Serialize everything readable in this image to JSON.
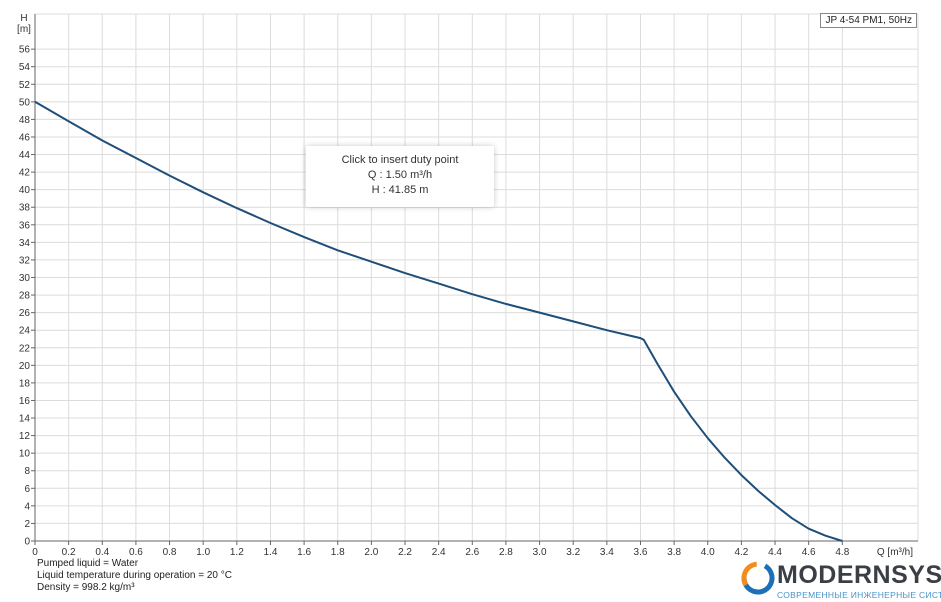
{
  "legend": {
    "label": "JP 4-54 PM1, 50Hz"
  },
  "tooltip": {
    "line1": "Click to insert duty point",
    "line2": "Q : 1.50 m³/h",
    "line3": "H : 41.85 m"
  },
  "info": {
    "liquid": "Pumped liquid = Water",
    "temperature": "Liquid temperature during operation = 20 °C",
    "density": "Density = 998.2 kg/m³"
  },
  "logo": {
    "word": "MODERNSYS",
    "subtitle": "СОВРЕМЕННЫЕ ИНЖЕНЕРНЫЕ СИСТЕМЫ",
    "colors": {
      "blue": "#1d6fb8",
      "orange": "#f28c1e",
      "text": "#3b3f45"
    }
  },
  "chart_data": {
    "type": "line",
    "title": "",
    "xlabel": "Q [m³/h]",
    "xlabel_lines": [
      "Q [m³/h]"
    ],
    "ylabel": "H [m]",
    "ylabel_lines": [
      "H",
      "[m]"
    ],
    "xlim": [
      0,
      5.25
    ],
    "ylim": [
      0,
      60
    ],
    "x_ticks": [
      0,
      0.2,
      0.4,
      0.6,
      0.8,
      1.0,
      1.2,
      1.4,
      1.6,
      1.8,
      2.0,
      2.2,
      2.4,
      2.6,
      2.8,
      3.0,
      3.2,
      3.4,
      3.6,
      3.8,
      4.0,
      4.2,
      4.4,
      4.6,
      4.8
    ],
    "x_tick_labels": [
      "0",
      "0.2",
      "0.4",
      "0.6",
      "0.8",
      "1.0",
      "1.2",
      "1.4",
      "1.6",
      "1.8",
      "2.0",
      "2.2",
      "2.4",
      "2.6",
      "2.8",
      "3.0",
      "3.2",
      "3.4",
      "3.6",
      "3.8",
      "4.0",
      "4.2",
      "4.4",
      "4.6",
      "4.8"
    ],
    "y_ticks": [
      0,
      2,
      4,
      6,
      8,
      10,
      12,
      14,
      16,
      18,
      20,
      22,
      24,
      26,
      28,
      30,
      32,
      34,
      36,
      38,
      40,
      42,
      44,
      46,
      48,
      50,
      52,
      54,
      56
    ],
    "grid": true,
    "legend_position": "top-right",
    "series": [
      {
        "name": "JP 4-54 PM1, 50Hz",
        "color": "#1f4e79",
        "x": [
          0,
          0.2,
          0.4,
          0.6,
          0.8,
          1.0,
          1.2,
          1.4,
          1.6,
          1.8,
          2.0,
          2.2,
          2.4,
          2.6,
          2.8,
          3.0,
          3.2,
          3.4,
          3.6,
          3.62,
          3.7,
          3.8,
          3.9,
          4.0,
          4.1,
          4.2,
          4.3,
          4.4,
          4.5,
          4.6,
          4.7,
          4.8
        ],
        "y": [
          50.0,
          47.8,
          45.6,
          43.6,
          41.6,
          39.7,
          37.9,
          36.2,
          34.6,
          33.1,
          31.8,
          30.5,
          29.3,
          28.1,
          27.0,
          26.0,
          25.0,
          24.0,
          23.1,
          22.9,
          20.2,
          17.0,
          14.2,
          11.7,
          9.5,
          7.5,
          5.7,
          4.1,
          2.6,
          1.4,
          0.6,
          0.0
        ]
      }
    ]
  }
}
